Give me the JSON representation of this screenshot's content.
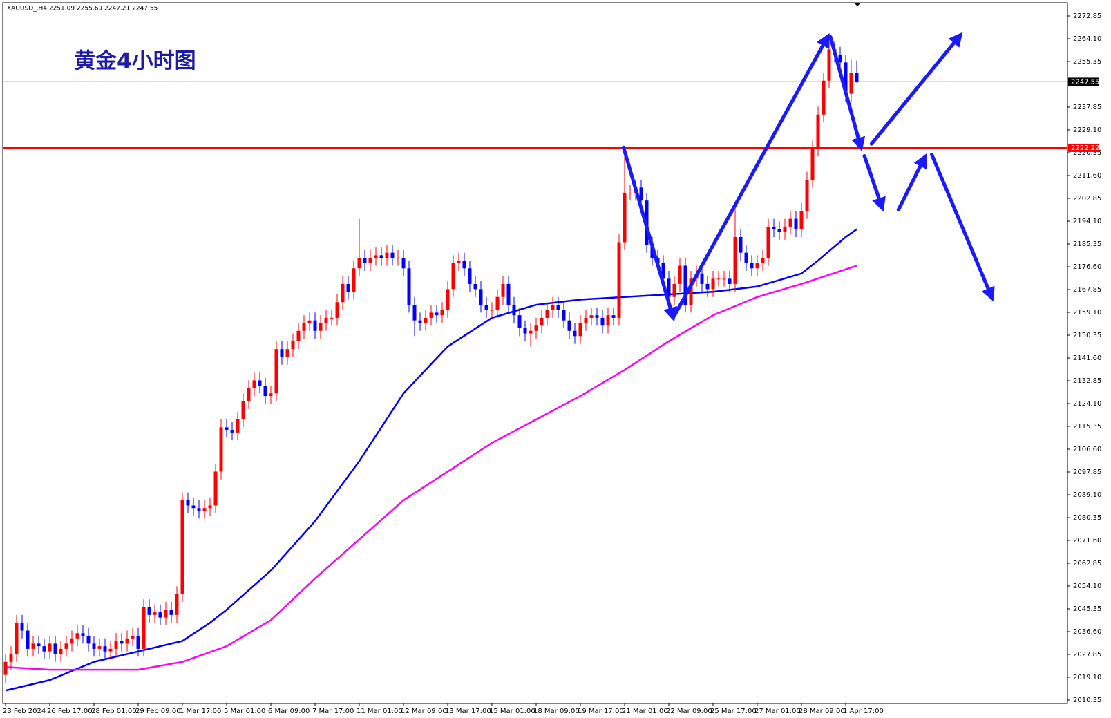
{
  "chart_data": {
    "type": "candlestick",
    "header": "XAUUSD_,H4  2251.09 2255.69 2247.21 2247.55",
    "title": "黄金4小时图",
    "up_color": "#ff0000",
    "down_color": "#0000ff",
    "categories": [
      "23 Feb 2024",
      null,
      null,
      null,
      null,
      null,
      null,
      null,
      "26 Feb 17:00",
      null,
      null,
      null,
      null,
      null,
      null,
      null,
      "28 Feb 01:00",
      null,
      null,
      null,
      null,
      null,
      null,
      null,
      "29 Feb 09:00",
      null,
      null,
      null,
      null,
      null,
      null,
      null,
      "1 Mar 17:00",
      null,
      null,
      null,
      null,
      null,
      null,
      null,
      "5 Mar 01:00",
      null,
      null,
      null,
      null,
      null,
      null,
      null,
      "6 Mar 09:00",
      null,
      null,
      null,
      null,
      null,
      null,
      null,
      "7 Mar 17:00",
      null,
      null,
      null,
      null,
      null,
      null,
      null,
      "11 Mar 01:00",
      null,
      null,
      null,
      null,
      null,
      null,
      null,
      "12 Mar 09:00",
      null,
      null,
      null,
      null,
      null,
      null,
      null,
      "13 Mar 17:00",
      null,
      null,
      null,
      null,
      null,
      null,
      null,
      "15 Mar 01:00",
      null,
      null,
      null,
      null,
      null,
      null,
      null,
      "18 Mar 09:00",
      null,
      null,
      null,
      null,
      null,
      null,
      null,
      "19 Mar 17:00",
      null,
      null,
      null,
      null,
      null,
      null,
      null,
      "21 Mar 01:00",
      null,
      null,
      null,
      null,
      null,
      null,
      null,
      "22 Mar 09:00",
      null,
      null,
      null,
      null,
      null,
      null,
      null,
      "25 Mar 17:00",
      null,
      null,
      null,
      null,
      null,
      null,
      null,
      "27 Mar 01:00",
      null,
      null,
      null,
      null,
      null,
      null,
      null,
      "28 Mar 09:00",
      null,
      null,
      null,
      null,
      null,
      null,
      null,
      "1 Apr 17:00",
      null,
      null
    ],
    "open": [
      2020,
      2025,
      2028,
      2040,
      2037,
      2030,
      2032,
      2031,
      2029,
      2032,
      2028,
      2030,
      2032,
      2034,
      2036,
      2035,
      2032,
      2030,
      2031,
      2029,
      2030,
      2033,
      2032,
      2034,
      2035,
      2030,
      2046,
      2043,
      2044,
      2042,
      2045,
      2043,
      2051,
      2087,
      2085,
      2084,
      2083,
      2084,
      2085,
      2098,
      2115,
      2114,
      2113,
      2118,
      2125,
      2130,
      2133,
      2131,
      2127,
      2128,
      2145,
      2142,
      2145,
      2148,
      2152,
      2155,
      2156,
      2152,
      2155,
      2157,
      2157,
      2163,
      2170,
      2167,
      2176,
      2180,
      2178,
      2180,
      2181,
      2180,
      2182,
      2180,
      2180,
      2176,
      2162,
      2156,
      2155,
      2157,
      2159,
      2158,
      2160,
      2168,
      2178,
      2179,
      2176,
      2170,
      2168,
      2162,
      2160,
      2160,
      2165,
      2170,
      2162,
      2158,
      2153,
      2151,
      2152,
      2154,
      2157,
      2160,
      2162,
      2160,
      2156,
      2152,
      2150,
      2155,
      2157,
      2158,
      2157,
      2154,
      2158,
      2157,
      2186,
      2205,
      2205,
      2207,
      2202,
      2185,
      2180,
      2178,
      2172,
      2165,
      2170,
      2177,
      2162,
      2172,
      2174,
      2170,
      2168,
      2172,
      2172,
      2172,
      2170,
      2188,
      2182,
      2178,
      2176,
      2178,
      2180,
      2192,
      2191,
      2190,
      2192,
      2195,
      2191,
      2198,
      2210,
      2222,
      2235,
      2248,
      2260,
      2258,
      2255,
      2243,
      2251.09
    ],
    "high": [
      2028,
      2031,
      2043,
      2043,
      2040,
      2035,
      2035,
      2034,
      2035,
      2035,
      2033,
      2035,
      2037,
      2039,
      2039,
      2038,
      2035,
      2034,
      2034,
      2033,
      2036,
      2036,
      2037,
      2038,
      2038,
      2049,
      2049,
      2047,
      2047,
      2048,
      2048,
      2054,
      2090,
      2090,
      2088,
      2087,
      2087,
      2088,
      2101,
      2118,
      2118,
      2117,
      2121,
      2128,
      2133,
      2136,
      2136,
      2134,
      2131,
      2148,
      2148,
      2148,
      2151,
      2155,
      2158,
      2159,
      2159,
      2158,
      2160,
      2160,
      2166,
      2173,
      2173,
      2179,
      2195,
      2183,
      2183,
      2184,
      2184,
      2185,
      2185,
      2183,
      2183,
      2179,
      2165,
      2159,
      2160,
      2162,
      2162,
      2163,
      2171,
      2181,
      2182,
      2182,
      2179,
      2173,
      2171,
      2165,
      2163,
      2168,
      2173,
      2173,
      2165,
      2161,
      2156,
      2155,
      2157,
      2160,
      2163,
      2165,
      2165,
      2163,
      2159,
      2155,
      2158,
      2160,
      2161,
      2161,
      2160,
      2161,
      2161,
      2189,
      2222,
      2208,
      2210,
      2210,
      2205,
      2188,
      2183,
      2181,
      2175,
      2173,
      2180,
      2180,
      2175,
      2177,
      2177,
      2173,
      2175,
      2175,
      2175,
      2175,
      2200,
      2191,
      2185,
      2181,
      2181,
      2183,
      2195,
      2195,
      2194,
      2195,
      2198,
      2198,
      2201,
      2213,
      2225,
      2238,
      2251,
      2266,
      2263,
      2261,
      2258,
      2256,
      2255.69
    ],
    "low": [
      2017,
      2022,
      2025,
      2034,
      2027,
      2027,
      2028,
      2026,
      2026,
      2025,
      2025,
      2027,
      2029,
      2031,
      2032,
      2029,
      2027,
      2027,
      2026,
      2026,
      2027,
      2029,
      2029,
      2031,
      2027,
      2027,
      2040,
      2040,
      2039,
      2039,
      2040,
      2040,
      2048,
      2082,
      2081,
      2080,
      2080,
      2081,
      2082,
      2095,
      2111,
      2110,
      2110,
      2115,
      2122,
      2127,
      2128,
      2124,
      2124,
      2125,
      2139,
      2139,
      2142,
      2145,
      2149,
      2152,
      2149,
      2149,
      2152,
      2154,
      2154,
      2160,
      2164,
      2164,
      2173,
      2175,
      2175,
      2177,
      2177,
      2177,
      2177,
      2177,
      2173,
      2159,
      2150,
      2152,
      2152,
      2154,
      2155,
      2155,
      2157,
      2165,
      2175,
      2173,
      2167,
      2165,
      2159,
      2157,
      2157,
      2157,
      2162,
      2159,
      2155,
      2150,
      2148,
      2146,
      2149,
      2151,
      2154,
      2157,
      2157,
      2153,
      2149,
      2147,
      2147,
      2152,
      2154,
      2154,
      2151,
      2151,
      2154,
      2154,
      2183,
      2202,
      2202,
      2199,
      2182,
      2177,
      2175,
      2169,
      2162,
      2162,
      2167,
      2159,
      2159,
      2169,
      2167,
      2165,
      2165,
      2169,
      2169,
      2167,
      2167,
      2179,
      2175,
      2173,
      2173,
      2175,
      2177,
      2188,
      2187,
      2187,
      2189,
      2188,
      2188,
      2195,
      2207,
      2219,
      2232,
      2245,
      2255,
      2252,
      2240,
      2240,
      2247.21
    ],
    "close": [
      2025,
      2028,
      2040,
      2037,
      2030,
      2032,
      2031,
      2029,
      2032,
      2028,
      2030,
      2032,
      2034,
      2036,
      2035,
      2032,
      2030,
      2031,
      2029,
      2030,
      2033,
      2032,
      2034,
      2035,
      2030,
      2046,
      2043,
      2044,
      2042,
      2045,
      2043,
      2051,
      2087,
      2085,
      2084,
      2083,
      2084,
      2085,
      2098,
      2115,
      2114,
      2113,
      2118,
      2125,
      2130,
      2133,
      2131,
      2127,
      2128,
      2145,
      2142,
      2145,
      2148,
      2152,
      2155,
      2156,
      2152,
      2155,
      2157,
      2157,
      2163,
      2170,
      2167,
      2176,
      2180,
      2178,
      2180,
      2181,
      2180,
      2182,
      2180,
      2180,
      2176,
      2162,
      2156,
      2155,
      2157,
      2159,
      2158,
      2160,
      2168,
      2178,
      2179,
      2176,
      2170,
      2168,
      2162,
      2160,
      2160,
      2165,
      2170,
      2162,
      2158,
      2153,
      2151,
      2152,
      2154,
      2157,
      2160,
      2162,
      2160,
      2156,
      2152,
      2150,
      2155,
      2157,
      2158,
      2157,
      2154,
      2158,
      2157,
      2186,
      2205,
      2205,
      2207,
      2202,
      2185,
      2180,
      2178,
      2172,
      2165,
      2170,
      2177,
      2162,
      2172,
      2174,
      2170,
      2168,
      2172,
      2172,
      2172,
      2170,
      2188,
      2182,
      2178,
      2176,
      2178,
      2180,
      2192,
      2191,
      2190,
      2192,
      2195,
      2191,
      2198,
      2210,
      2222,
      2235,
      2248,
      2260,
      2258,
      2255,
      2243,
      2251.09,
      2247.55
    ],
    "overlays": [
      {
        "color": "#0000ff",
        "x": [
          0,
          8,
          16,
          24,
          32,
          37,
          40,
          48,
          56,
          64,
          72,
          80,
          88,
          96,
          104,
          112,
          120,
          128,
          136,
          144,
          147,
          152,
          154
        ],
        "values": [
          2014,
          2018,
          2025,
          2029,
          2033,
          2040,
          2045,
          2060,
          2079,
          2102,
          2128,
          2146,
          2157,
          2162,
          2164,
          2165,
          2166,
          2167,
          2169,
          2174,
          2179,
          2188,
          2191
        ]
      },
      {
        "color": "#ff00ff",
        "x": [
          0,
          8,
          16,
          24,
          32,
          40,
          48,
          56,
          64,
          72,
          80,
          88,
          96,
          104,
          112,
          120,
          128,
          136,
          144,
          154
        ],
        "values": [
          2023,
          2022,
          2022,
          2022,
          2025,
          2031,
          2041,
          2057,
          2072,
          2087,
          2098,
          2109,
          2118,
          2127,
          2137,
          2148,
          2158,
          2165,
          2170,
          2177
        ]
      }
    ],
    "hlines": [
      {
        "value": 2222.22,
        "color": "#ff0000"
      },
      {
        "value": 2247.55,
        "color": "#000000"
      }
    ],
    "ylim": [
      2010.35,
      2272.85
    ],
    "yticks": [
      2010.35,
      {
        "value": 2019.1,
        "label": "2019.10"
      },
      2027.85,
      {
        "value": 2036.6,
        "label": "2036.60"
      },
      2045.35,
      {
        "value": 2054.1,
        "label": "2054.10"
      },
      2062.85,
      {
        "value": 2071.6,
        "label": "2071.60"
      },
      2080.35,
      {
        "value": 2089.1,
        "label": "2089.10"
      },
      2097.85,
      {
        "value": 2106.6,
        "label": "2106.60"
      },
      2115.35,
      {
        "value": 2124.1,
        "label": "2124.10"
      },
      2132.85,
      {
        "value": 2141.6,
        "label": "2141.60"
      },
      2150.35,
      {
        "value": 2159.1,
        "label": "2159.10"
      },
      2167.85,
      {
        "value": 2176.6,
        "label": "2176.60"
      },
      2185.35,
      {
        "value": 2194.1,
        "label": "2194.10"
      },
      2202.85,
      {
        "value": 2211.6,
        "label": "2211.60"
      },
      2220.35,
      {
        "value": 2229.1,
        "label": "2229.10"
      },
      2237.85,
      2255.35,
      {
        "value": 2264.1,
        "label": "2264.10"
      },
      2272.85
    ]
  }
}
